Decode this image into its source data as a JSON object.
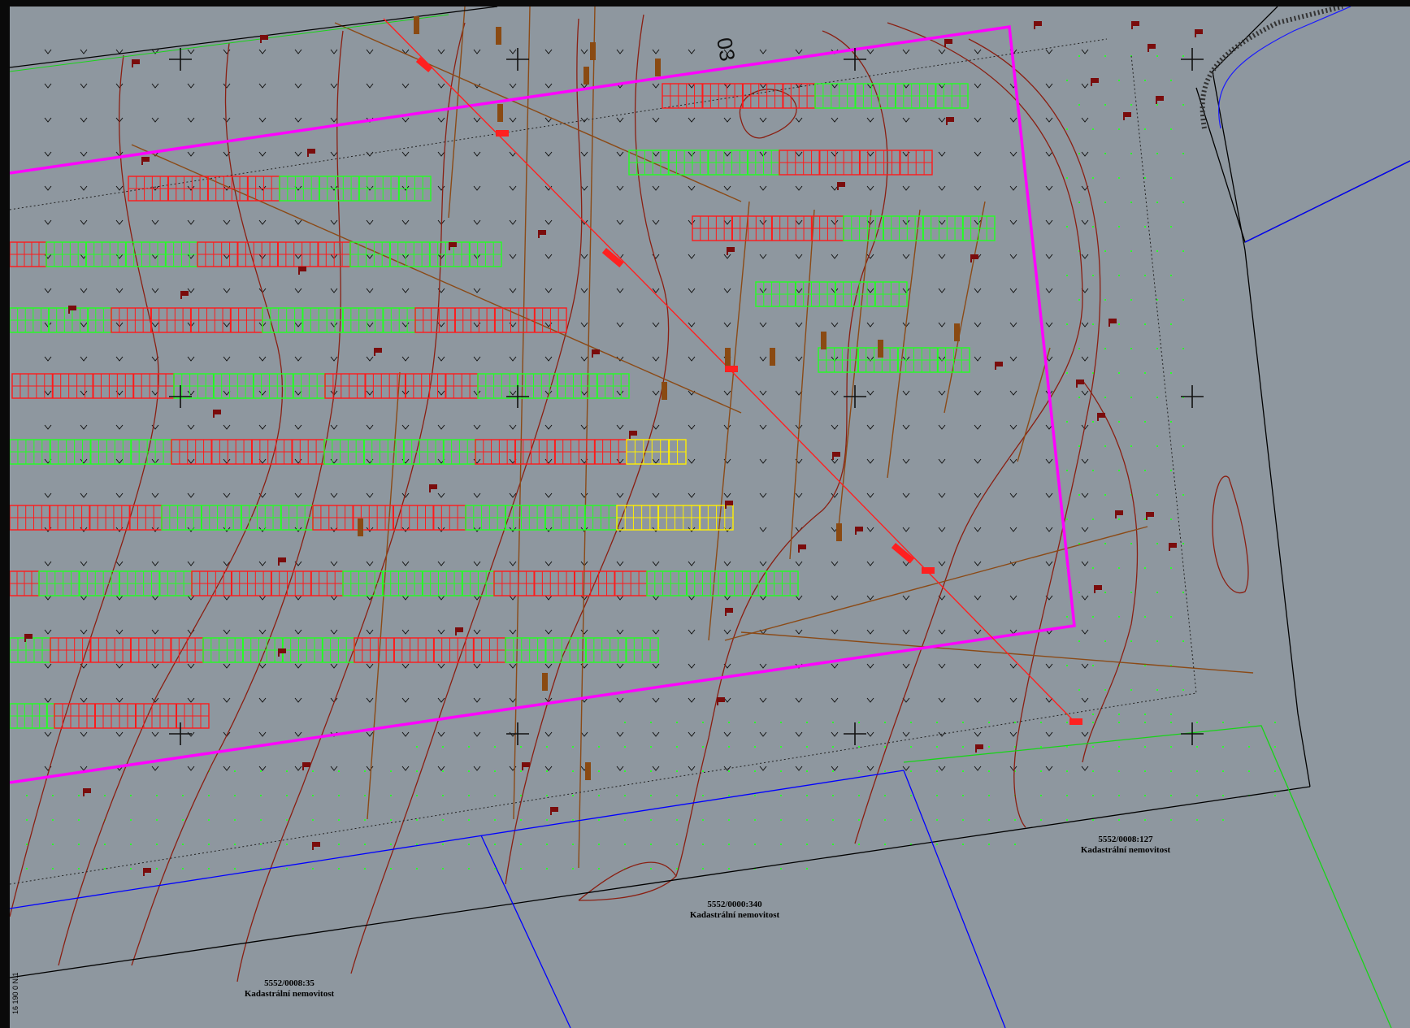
{
  "colors": {
    "background": "#8e979f",
    "boundary": "#ff00ff",
    "module_red": "#ff1a1a",
    "module_green": "#22ff22",
    "module_yellow": "#ffee00",
    "contour": "#8a1f12",
    "contour_index": "#8b4a16",
    "parcel_line": "#000000",
    "parcel_blue": "#0000ff",
    "cable": "#ff2020"
  },
  "icons": {
    "grid_cross": "plus-glyph",
    "grass_symbol": "check-glyph",
    "tree_symbol": "flag-glyph"
  },
  "parcels": [
    {
      "number": "5552/0008:35",
      "name": "Kadastrální nemovitost"
    },
    {
      "number": "5552/0000:340",
      "name": "Kadastrální nemovitost"
    },
    {
      "number": "5552/0008:127",
      "name": "Kadastrální nemovitost"
    }
  ],
  "annotations": {
    "top_number": "03",
    "side_text": "16 190 0 N.1"
  }
}
